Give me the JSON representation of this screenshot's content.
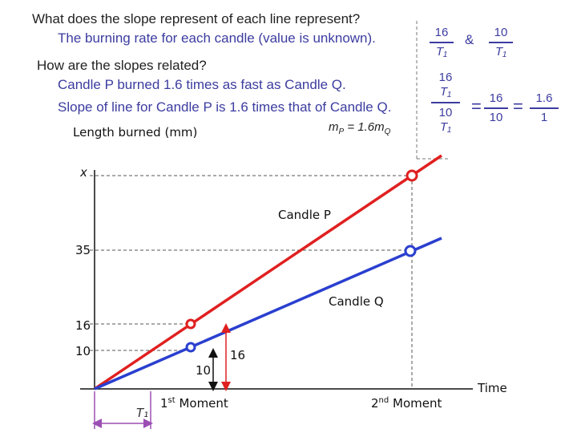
{
  "text": {
    "q1": "What does the slope represent of each line represent?",
    "a1": "The burning rate for each candle (value is unknown).",
    "q2": "How are the slopes related?",
    "a2": "Candle P burned 1.6 times as fast as Candle Q.",
    "a3": "Slope of line for Candle P is 1.6 times that of Candle Q.",
    "eq_left": "m",
    "eq_left_sub": "P",
    "eq_mid": " = 1.6",
    "eq_right": "m",
    "eq_right_sub": "Q"
  },
  "fractions": {
    "f1": {
      "num": "16",
      "den": "T₁"
    },
    "amp": "&",
    "f2": {
      "num": "10",
      "den": "T₁"
    },
    "big_num": {
      "num": "16",
      "den": "T₁"
    },
    "big_den": {
      "num": "10",
      "den": "T₁"
    },
    "eq1": "=",
    "f3": {
      "num": "16",
      "den": "10"
    },
    "eq2": "=",
    "f4": {
      "num": "1.6",
      "den": "1"
    }
  },
  "graph": {
    "y_axis_label": "Length burned (mm)",
    "x_axis_label": "Time",
    "y_ticks": [
      "x",
      "35",
      "16",
      "10"
    ],
    "line_p_label": "Candle P",
    "line_q_label": "Candle Q",
    "moment1": "1st Moment",
    "moment2": "2nd Moment",
    "moment1_sup": "st",
    "moment2_sup": "nd",
    "moment1_prefix": "1",
    "moment2_prefix": "2",
    "moment_word": " Moment",
    "t1_label": "T₁",
    "gap_blue": "10",
    "gap_red": "16",
    "colors": {
      "p": "#e02020",
      "q": "#2a3fcf",
      "axis": "#111111"
    }
  }
}
